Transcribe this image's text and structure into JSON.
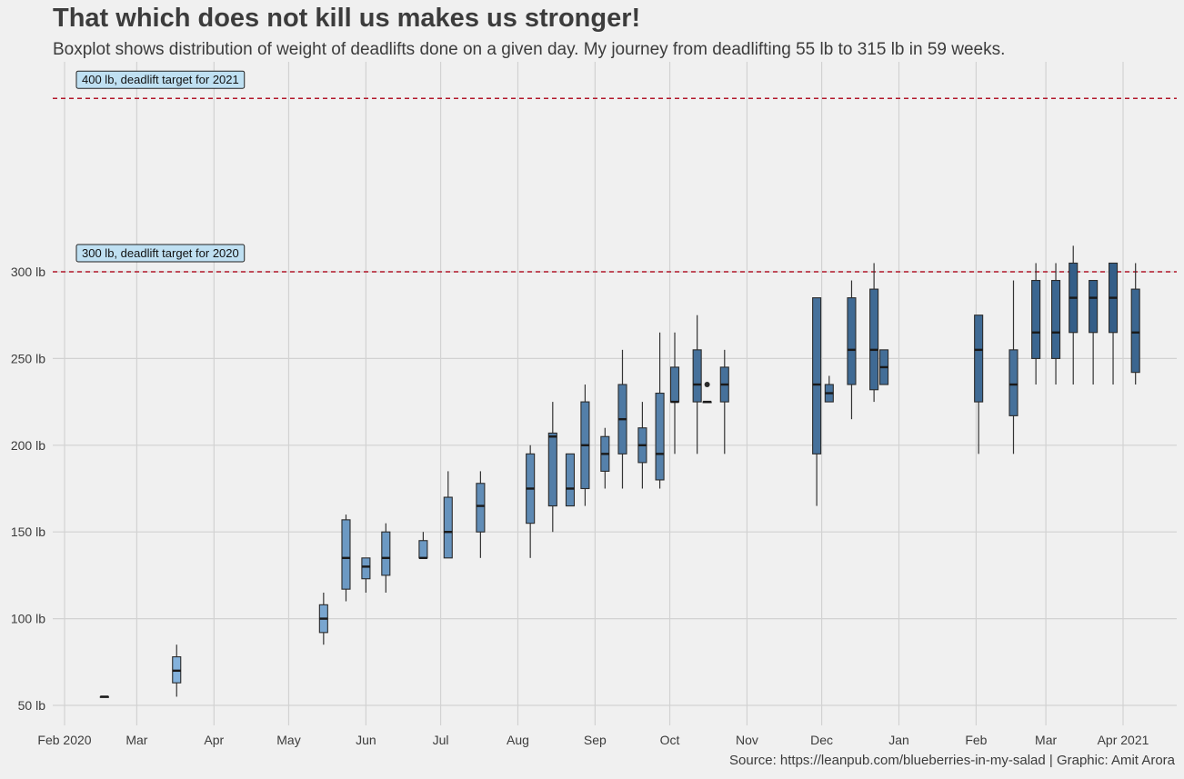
{
  "title": "That which does not kill us makes us stronger!",
  "subtitle": "Boxplot shows distribution of weight of deadlifts done on a given day. My journey from deadlifting 55 lb to 315 lb in 59 weeks.",
  "caption": "Source: https://leanpub.com/blueberries-in-my-salad | Graphic: Amit Arora",
  "chart_data": {
    "type": "boxplot",
    "title": "That which does not kill us makes us stronger!",
    "xlabel": "",
    "ylabel": "",
    "xlim": [
      "2020-02-01",
      "2021-04-15"
    ],
    "ylim": [
      45,
      415
    ],
    "y_ticks": [
      {
        "value": 50,
        "label": "50 lb"
      },
      {
        "value": 100,
        "label": "100 lb"
      },
      {
        "value": 150,
        "label": "150 lb"
      },
      {
        "value": 200,
        "label": "200 lb"
      },
      {
        "value": 250,
        "label": "250 lb"
      },
      {
        "value": 300,
        "label": "300 lb"
      }
    ],
    "x_ticks": [
      {
        "date": "2020-02-01",
        "label": "Feb 2020"
      },
      {
        "date": "2020-03-01",
        "label": "Mar"
      },
      {
        "date": "2020-04-01",
        "label": "Apr"
      },
      {
        "date": "2020-05-01",
        "label": "May"
      },
      {
        "date": "2020-06-01",
        "label": "Jun"
      },
      {
        "date": "2020-07-01",
        "label": "Jul"
      },
      {
        "date": "2020-08-01",
        "label": "Aug"
      },
      {
        "date": "2020-09-01",
        "label": "Sep"
      },
      {
        "date": "2020-10-01",
        "label": "Oct"
      },
      {
        "date": "2020-11-01",
        "label": "Nov"
      },
      {
        "date": "2020-12-01",
        "label": "Dec"
      },
      {
        "date": "2021-01-01",
        "label": "Jan"
      },
      {
        "date": "2021-02-01",
        "label": "Feb"
      },
      {
        "date": "2021-03-01",
        "label": "Mar"
      },
      {
        "date": "2021-04-01",
        "label": "Apr 2021"
      }
    ],
    "reference_lines": [
      {
        "value": 400,
        "label": "400 lb, deadlift target for 2021",
        "color": "#b2182b"
      },
      {
        "value": 300,
        "label": "300 lb, deadlift target for 2020",
        "color": "#b2182b"
      }
    ],
    "fill_scale": {
      "low": "#8ab8e2",
      "high": "#2c5680",
      "domain": [
        55,
        305
      ]
    },
    "boxes": [
      {
        "date": "2020-02-17",
        "min": 55,
        "q1": 55,
        "median": 55,
        "q3": 55,
        "max": 55,
        "outliers": []
      },
      {
        "date": "2020-03-17",
        "min": 55,
        "q1": 63,
        "median": 70,
        "q3": 78,
        "max": 85,
        "outliers": []
      },
      {
        "date": "2020-05-15",
        "min": 85,
        "q1": 92,
        "median": 100,
        "q3": 108,
        "max": 115,
        "outliers": []
      },
      {
        "date": "2020-05-24",
        "min": 110,
        "q1": 117,
        "median": 135,
        "q3": 157,
        "max": 160,
        "outliers": []
      },
      {
        "date": "2020-06-01",
        "min": 115,
        "q1": 123,
        "median": 130,
        "q3": 135,
        "max": 135,
        "outliers": []
      },
      {
        "date": "2020-06-09",
        "min": 115,
        "q1": 125,
        "median": 135,
        "q3": 150,
        "max": 155,
        "outliers": []
      },
      {
        "date": "2020-06-24",
        "min": 135,
        "q1": 135,
        "median": 135,
        "q3": 145,
        "max": 150,
        "outliers": []
      },
      {
        "date": "2020-07-04",
        "min": 135,
        "q1": 135,
        "median": 150,
        "q3": 170,
        "max": 185,
        "outliers": []
      },
      {
        "date": "2020-07-17",
        "min": 135,
        "q1": 150,
        "median": 165,
        "q3": 178,
        "max": 185,
        "outliers": []
      },
      {
        "date": "2020-08-06",
        "min": 135,
        "q1": 155,
        "median": 175,
        "q3": 195,
        "max": 200,
        "outliers": []
      },
      {
        "date": "2020-08-15",
        "min": 150,
        "q1": 165,
        "median": 205,
        "q3": 207,
        "max": 225,
        "outliers": []
      },
      {
        "date": "2020-08-22",
        "min": 165,
        "q1": 165,
        "median": 175,
        "q3": 195,
        "max": 195,
        "outliers": []
      },
      {
        "date": "2020-08-28",
        "min": 165,
        "q1": 175,
        "median": 200,
        "q3": 225,
        "max": 235,
        "outliers": []
      },
      {
        "date": "2020-09-05",
        "min": 175,
        "q1": 185,
        "median": 195,
        "q3": 205,
        "max": 210,
        "outliers": []
      },
      {
        "date": "2020-09-12",
        "min": 175,
        "q1": 195,
        "median": 215,
        "q3": 235,
        "max": 255,
        "outliers": []
      },
      {
        "date": "2020-09-20",
        "min": 175,
        "q1": 190,
        "median": 200,
        "q3": 210,
        "max": 225,
        "outliers": []
      },
      {
        "date": "2020-09-27",
        "min": 175,
        "q1": 180,
        "median": 195,
        "q3": 230,
        "max": 265,
        "outliers": []
      },
      {
        "date": "2020-10-03",
        "min": 195,
        "q1": 225,
        "median": 225,
        "q3": 245,
        "max": 265,
        "outliers": []
      },
      {
        "date": "2020-10-12",
        "min": 195,
        "q1": 225,
        "median": 235,
        "q3": 255,
        "max": 275,
        "outliers": []
      },
      {
        "date": "2020-10-16",
        "min": 225,
        "q1": 225,
        "median": 225,
        "q3": 225,
        "max": 225,
        "outliers": [
          235
        ]
      },
      {
        "date": "2020-10-23",
        "min": 195,
        "q1": 225,
        "median": 235,
        "q3": 245,
        "max": 255,
        "outliers": []
      },
      {
        "date": "2020-11-29",
        "min": 165,
        "q1": 195,
        "median": 235,
        "q3": 285,
        "max": 285,
        "outliers": []
      },
      {
        "date": "2020-12-04",
        "min": 225,
        "q1": 225,
        "median": 230,
        "q3": 235,
        "max": 240,
        "outliers": []
      },
      {
        "date": "2020-12-13",
        "min": 215,
        "q1": 235,
        "median": 255,
        "q3": 285,
        "max": 295,
        "outliers": []
      },
      {
        "date": "2020-12-22",
        "min": 225,
        "q1": 232,
        "median": 255,
        "q3": 290,
        "max": 305,
        "outliers": []
      },
      {
        "date": "2020-12-26",
        "min": 235,
        "q1": 235,
        "median": 245,
        "q3": 255,
        "max": 255,
        "outliers": []
      },
      {
        "date": "2021-02-02",
        "min": 195,
        "q1": 225,
        "median": 255,
        "q3": 275,
        "max": 275,
        "outliers": []
      },
      {
        "date": "2021-02-16",
        "min": 195,
        "q1": 217,
        "median": 235,
        "q3": 255,
        "max": 295,
        "outliers": []
      },
      {
        "date": "2021-02-25",
        "min": 235,
        "q1": 250,
        "median": 265,
        "q3": 295,
        "max": 305,
        "outliers": []
      },
      {
        "date": "2021-03-05",
        "min": 235,
        "q1": 250,
        "median": 265,
        "q3": 295,
        "max": 305,
        "outliers": []
      },
      {
        "date": "2021-03-12",
        "min": 235,
        "q1": 265,
        "median": 285,
        "q3": 305,
        "max": 315,
        "outliers": []
      },
      {
        "date": "2021-03-20",
        "min": 235,
        "q1": 265,
        "median": 285,
        "q3": 295,
        "max": 295,
        "outliers": []
      },
      {
        "date": "2021-03-28",
        "min": 235,
        "q1": 265,
        "median": 285,
        "q3": 305,
        "max": 305,
        "outliers": []
      },
      {
        "date": "2021-04-06",
        "min": 235,
        "q1": 242,
        "median": 265,
        "q3": 290,
        "max": 305,
        "outliers": []
      }
    ]
  }
}
